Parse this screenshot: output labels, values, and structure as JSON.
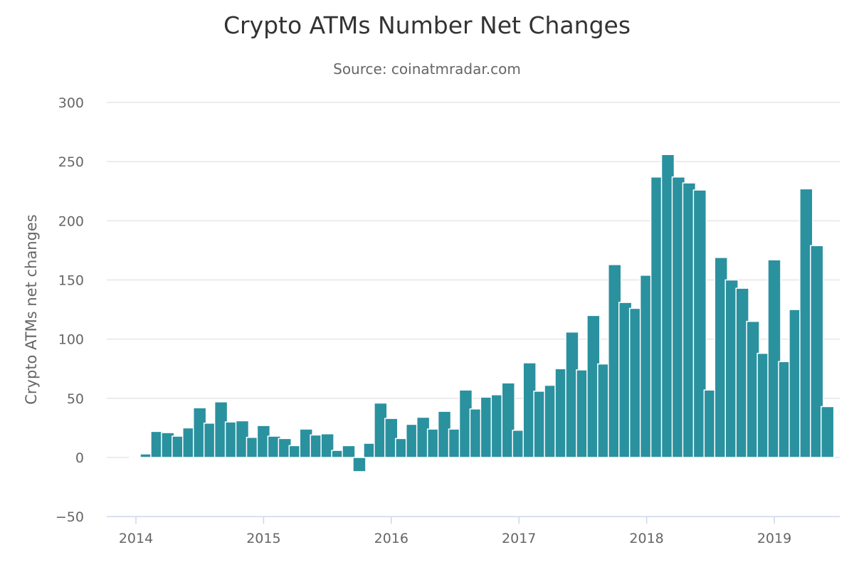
{
  "chart_data": {
    "type": "bar",
    "title": "Crypto ATMs Number Net Changes",
    "subtitle": "Source: coinatmradar.com",
    "xlabel": "",
    "ylabel": "Crypto ATMs net changes",
    "ylim": [
      -50,
      300
    ],
    "yticks": [
      "−50",
      "0",
      "50",
      "100",
      "150",
      "200",
      "250",
      "300"
    ],
    "ytick_values": [
      -50,
      0,
      50,
      100,
      150,
      200,
      250,
      300
    ],
    "xticks": [
      "2014",
      "2015",
      "2016",
      "2017",
      "2018",
      "2019"
    ],
    "grid": true,
    "legend": "none",
    "color": "#2a919f",
    "x_start": "2014-01",
    "x_interval": "month",
    "values": [
      0,
      3,
      22,
      21,
      18,
      25,
      42,
      29,
      47,
      30,
      31,
      17,
      27,
      18,
      16,
      10,
      24,
      19,
      20,
      6,
      10,
      -12,
      12,
      46,
      33,
      16,
      28,
      34,
      24,
      39,
      24,
      57,
      41,
      51,
      53,
      63,
      23,
      80,
      56,
      61,
      75,
      106,
      74,
      120,
      79,
      163,
      131,
      126,
      154,
      237,
      256,
      237,
      232,
      226,
      57,
      169,
      150,
      143,
      115,
      88,
      167,
      81,
      125,
      227,
      179,
      43
    ]
  }
}
